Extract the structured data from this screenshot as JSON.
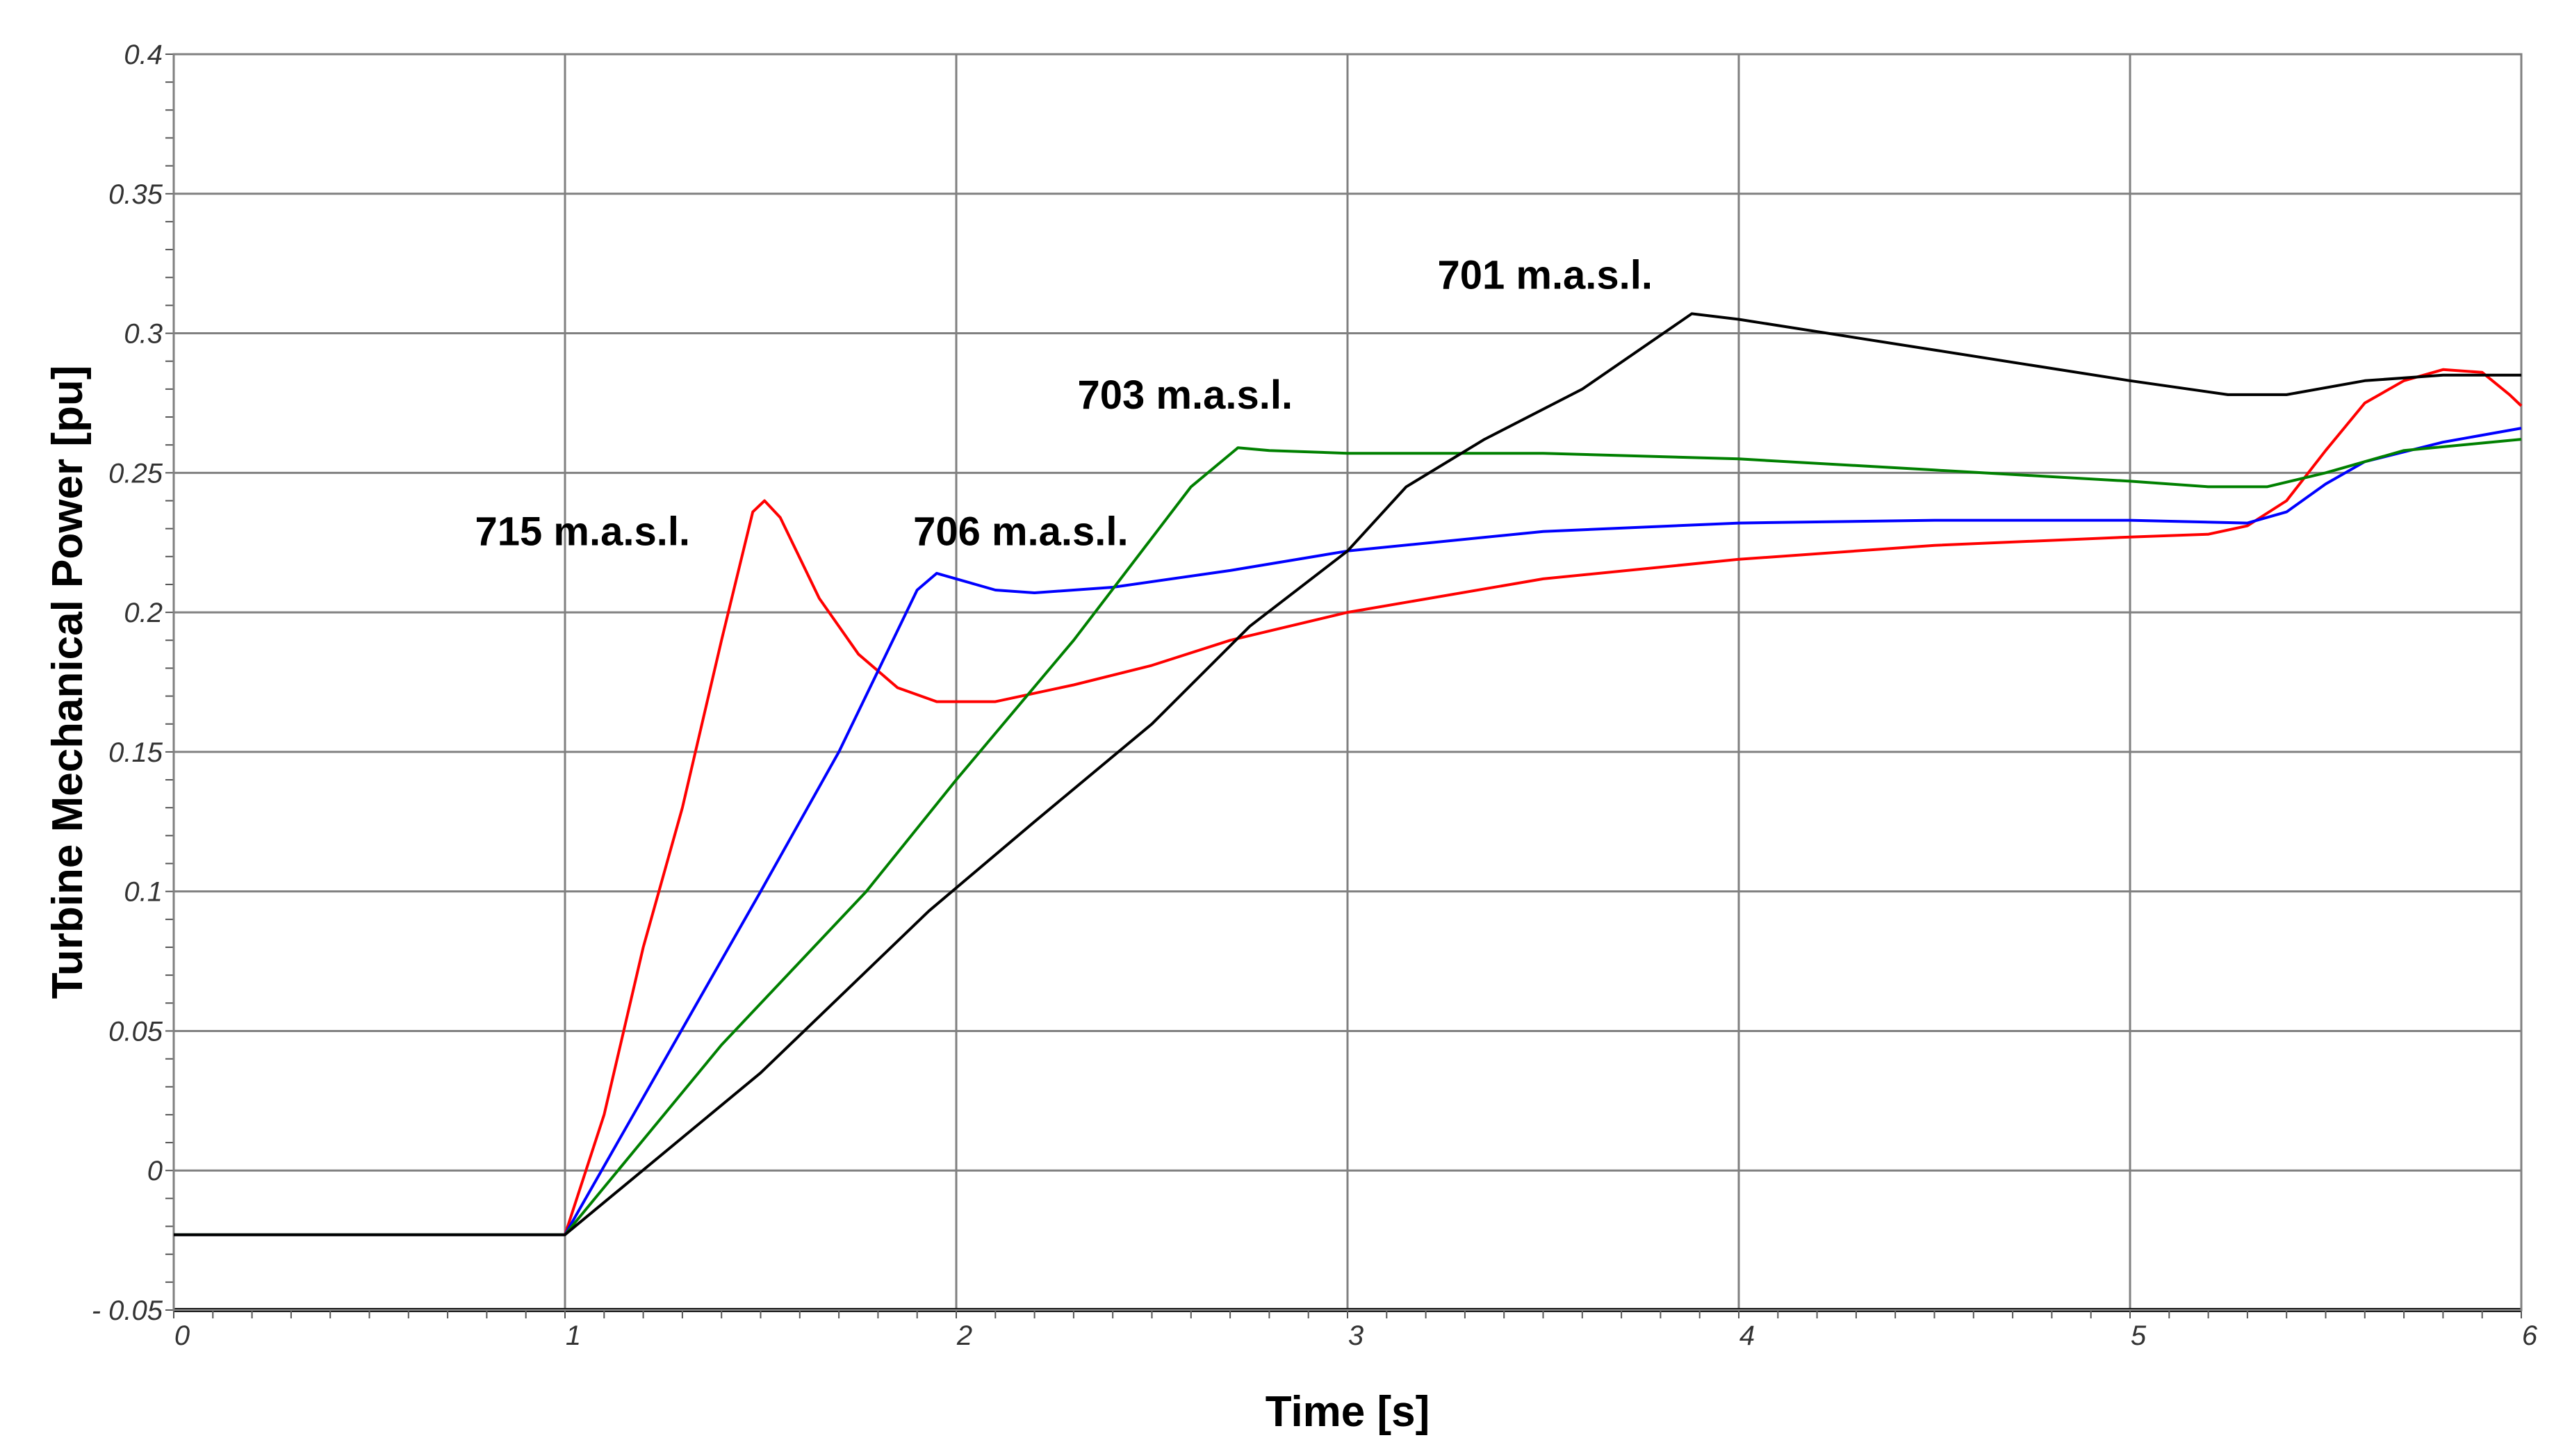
{
  "chart_data": {
    "type": "line",
    "title": "",
    "xlabel": "Time [s]",
    "ylabel": "Turbine Mechanical Power [pu]",
    "xlim": [
      0,
      6
    ],
    "ylim": [
      -0.05,
      0.4
    ],
    "grid": true,
    "x_ticks": [
      0,
      1,
      2,
      3,
      4,
      5,
      6
    ],
    "x_tick_labels": [
      "0",
      "1",
      "2",
      "3",
      "4",
      "5",
      "6"
    ],
    "y_ticks": [
      -0.05,
      0,
      0.05,
      0.1,
      0.15,
      0.2,
      0.25,
      0.3,
      0.35,
      0.4
    ],
    "y_tick_labels": [
      "- 0.05",
      "0",
      "0.05",
      "0.1",
      "0.15",
      "0.2",
      "0.25",
      "0.3",
      "0.35",
      "0.4"
    ],
    "series": [
      {
        "name": "715 m.a.s.l.",
        "color": "#ff0000",
        "points": [
          [
            0,
            -0.023
          ],
          [
            1,
            -0.023
          ],
          [
            1.1,
            0.02
          ],
          [
            1.2,
            0.08
          ],
          [
            1.3,
            0.13
          ],
          [
            1.4,
            0.19
          ],
          [
            1.48,
            0.236
          ],
          [
            1.51,
            0.24
          ],
          [
            1.55,
            0.234
          ],
          [
            1.65,
            0.205
          ],
          [
            1.75,
            0.185
          ],
          [
            1.85,
            0.173
          ],
          [
            1.95,
            0.168
          ],
          [
            2.1,
            0.168
          ],
          [
            2.3,
            0.174
          ],
          [
            2.5,
            0.181
          ],
          [
            2.7,
            0.19
          ],
          [
            3.0,
            0.2
          ],
          [
            3.5,
            0.212
          ],
          [
            4.0,
            0.219
          ],
          [
            4.5,
            0.224
          ],
          [
            5.0,
            0.227
          ],
          [
            5.2,
            0.228
          ],
          [
            5.3,
            0.231
          ],
          [
            5.4,
            0.24
          ],
          [
            5.5,
            0.258
          ],
          [
            5.6,
            0.275
          ],
          [
            5.7,
            0.283
          ],
          [
            5.8,
            0.287
          ],
          [
            5.9,
            0.286
          ],
          [
            5.97,
            0.278
          ],
          [
            6.0,
            0.274
          ]
        ]
      },
      {
        "name": "706 m.a.s.l.",
        "color": "#0000ff",
        "points": [
          [
            0,
            -0.023
          ],
          [
            1,
            -0.023
          ],
          [
            1.5,
            0.1
          ],
          [
            1.7,
            0.15
          ],
          [
            1.9,
            0.208
          ],
          [
            1.95,
            0.214
          ],
          [
            2.0,
            0.212
          ],
          [
            2.1,
            0.208
          ],
          [
            2.2,
            0.207
          ],
          [
            2.4,
            0.209
          ],
          [
            2.7,
            0.215
          ],
          [
            3.0,
            0.222
          ],
          [
            3.5,
            0.229
          ],
          [
            4.0,
            0.232
          ],
          [
            4.5,
            0.233
          ],
          [
            5.0,
            0.233
          ],
          [
            5.3,
            0.232
          ],
          [
            5.4,
            0.236
          ],
          [
            5.5,
            0.246
          ],
          [
            5.6,
            0.254
          ],
          [
            5.8,
            0.261
          ],
          [
            6.0,
            0.266
          ]
        ]
      },
      {
        "name": "703 m.a.s.l.",
        "color": "#008000",
        "points": [
          [
            0,
            -0.023
          ],
          [
            0.7,
            -0.023
          ],
          [
            1,
            -0.023
          ],
          [
            1.4,
            0.045
          ],
          [
            1.77,
            0.1
          ],
          [
            2.0,
            0.14
          ],
          [
            2.3,
            0.19
          ],
          [
            2.6,
            0.245
          ],
          [
            2.72,
            0.259
          ],
          [
            2.8,
            0.258
          ],
          [
            3.0,
            0.257
          ],
          [
            3.5,
            0.257
          ],
          [
            4.0,
            0.255
          ],
          [
            4.5,
            0.251
          ],
          [
            5.0,
            0.247
          ],
          [
            5.2,
            0.245
          ],
          [
            5.35,
            0.245
          ],
          [
            5.5,
            0.25
          ],
          [
            5.7,
            0.258
          ],
          [
            6.0,
            0.262
          ]
        ]
      },
      {
        "name": "701 m.a.s.l.",
        "color": "#000000",
        "points": [
          [
            0,
            -0.023
          ],
          [
            1,
            -0.023
          ],
          [
            1.5,
            0.035
          ],
          [
            1.93,
            0.093
          ],
          [
            2.2,
            0.125
          ],
          [
            2.5,
            0.16
          ],
          [
            2.75,
            0.195
          ],
          [
            3.0,
            0.222
          ],
          [
            3.15,
            0.245
          ],
          [
            3.35,
            0.262
          ],
          [
            3.6,
            0.28
          ],
          [
            3.88,
            0.307
          ],
          [
            4.0,
            0.305
          ],
          [
            4.5,
            0.294
          ],
          [
            5.0,
            0.283
          ],
          [
            5.25,
            0.278
          ],
          [
            5.4,
            0.278
          ],
          [
            5.6,
            0.283
          ],
          [
            5.8,
            0.285
          ],
          [
            6.0,
            0.285
          ]
        ]
      }
    ],
    "annotations": [
      {
        "text": "715 m.a.s.l.",
        "x": 0.77,
        "y": 0.224,
        "series": "715 m.a.s.l."
      },
      {
        "text": "706 m.a.s.l.",
        "x": 1.89,
        "y": 0.224,
        "series": "706 m.a.s.l."
      },
      {
        "text": "703 m.a.s.l.",
        "x": 2.31,
        "y": 0.273,
        "series": "703 m.a.s.l."
      },
      {
        "text": "701 m.a.s.l.",
        "x": 3.23,
        "y": 0.316,
        "series": "701 m.a.s.l."
      }
    ]
  }
}
